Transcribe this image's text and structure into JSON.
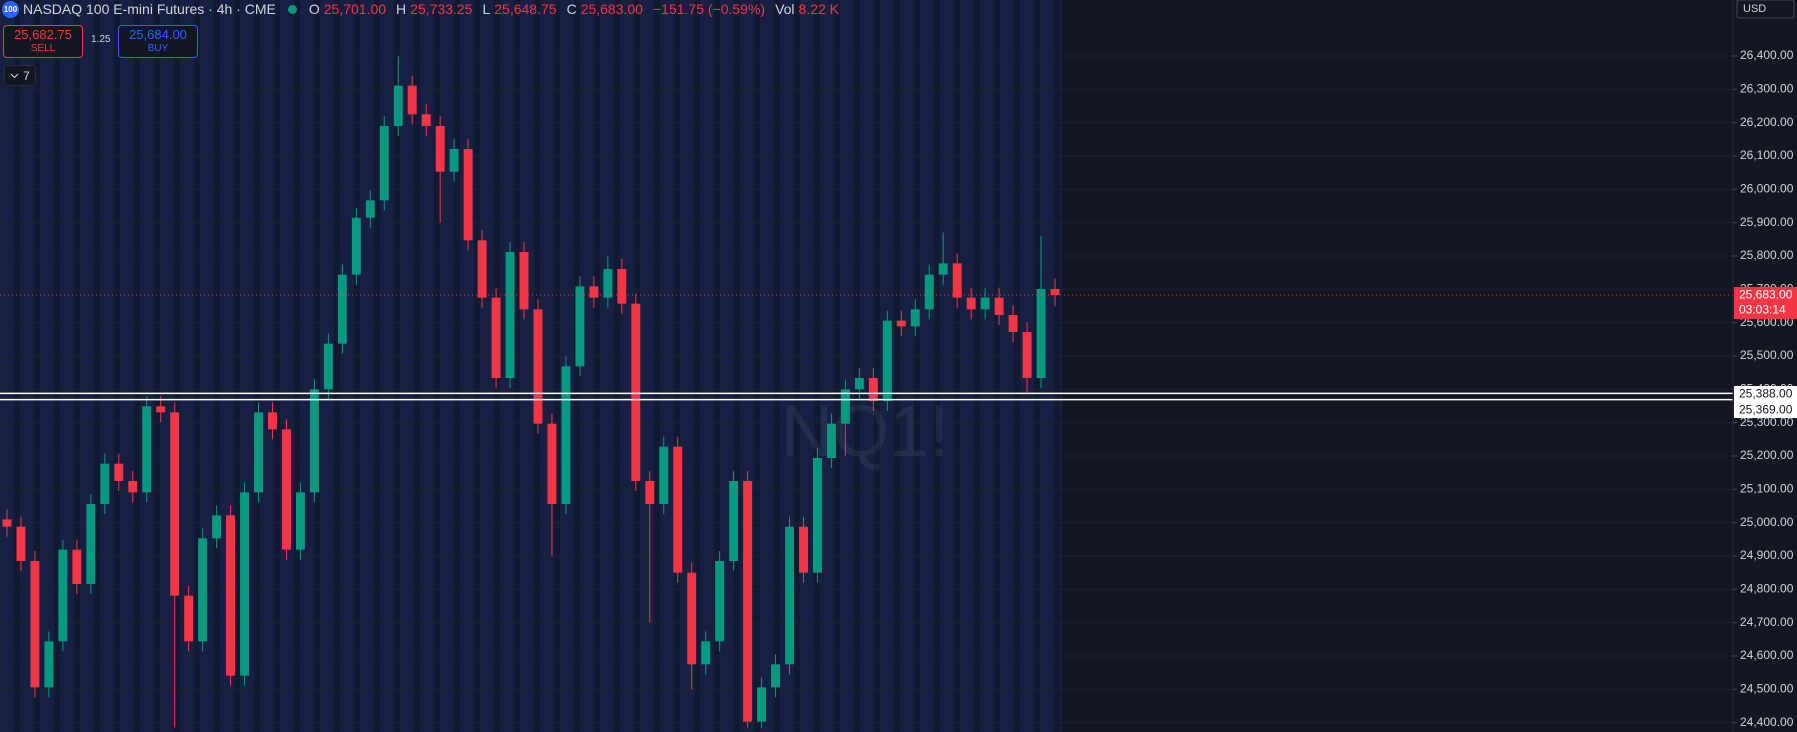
{
  "header": {
    "symbol_icon": "100",
    "title": "NASDAQ 100 E-mini Futures · 4h · CME",
    "ohlc": [
      {
        "key": "O",
        "value": "25,701.00"
      },
      {
        "key": "H",
        "value": "25,733.25"
      },
      {
        "key": "L",
        "value": "25,648.75"
      },
      {
        "key": "C",
        "value": "25,683.00"
      }
    ],
    "change": "−151.75 (−0.59%)",
    "volume_key": "Vol",
    "volume": "8.22 K"
  },
  "trade": {
    "sell_price": "25,682.75",
    "sell": "SELL",
    "spread": "1.25",
    "buy_price": "25,684.00",
    "buy": "BUY",
    "indicators_count": "7"
  },
  "chart_data": {
    "type": "candlestick",
    "watermark": "NQ1!",
    "currency": "USD",
    "up_color": "#089981",
    "down_color": "#f23645",
    "grid": true,
    "ylim": [
      24372,
      26568
    ],
    "yticks": [
      {
        "value": 24400,
        "label": "24,400.00"
      },
      {
        "value": 24500,
        "label": "24,500.00"
      },
      {
        "value": 24600,
        "label": "24,600.00"
      },
      {
        "value": 24700,
        "label": "24,700.00"
      },
      {
        "value": 24800,
        "label": "24,800.00"
      },
      {
        "value": 24900,
        "label": "24,900.00"
      },
      {
        "value": 25000,
        "label": "25,000.00"
      },
      {
        "value": 25100,
        "label": "25,100.00"
      },
      {
        "value": 25200,
        "label": "25,200.00"
      },
      {
        "value": 25300,
        "label": "25,300.00"
      },
      {
        "value": 25400,
        "label": "25,400.00"
      },
      {
        "value": 25500,
        "label": "25,500.00"
      },
      {
        "value": 25600,
        "label": "25,600.00"
      },
      {
        "value": 25700,
        "label": "25,700.00"
      },
      {
        "value": 25800,
        "label": "25,800.00"
      },
      {
        "value": 25900,
        "label": "25,900.00"
      },
      {
        "value": 26000,
        "label": "26,000.00"
      },
      {
        "value": 26100,
        "label": "26,100.00"
      },
      {
        "value": 26200,
        "label": "26,200.00"
      },
      {
        "value": 26300,
        "label": "26,300.00"
      },
      {
        "value": 26400,
        "label": "26,400.00"
      }
    ],
    "open": [
      25010,
      24988,
      24885,
      24506,
      24644,
      24919,
      24816,
      25056,
      25177,
      25125,
      25091,
      25349,
      25331,
      24781,
      24644,
      24953,
      25022,
      24541,
      25091,
      25331,
      25280,
      24919,
      25091,
      25400,
      25537,
      25744,
      25915,
      25967,
      26190,
      26311,
      26225,
      26190,
      26053,
      26121,
      25847,
      25675,
      25434,
      25812,
      25640,
      25297,
      25056,
      25469,
      25709,
      25675,
      25761,
      25657,
      25125,
      25056,
      25228,
      24850,
      24575,
      24644,
      24885,
      25125,
      24403,
      24506,
      24575,
      24988,
      24850,
      25194,
      25297,
      25400,
      25434,
      25365,
      25606,
      25589,
      25640,
      25744,
      25778,
      25675,
      25640,
      25675,
      25623,
      25572,
      25434,
      25701
    ],
    "high": [
      25040,
      25018,
      24915,
      24674,
      24949,
      24949,
      25086,
      25207,
      25207,
      25155,
      25379,
      25379,
      25361,
      24811,
      24983,
      25052,
      25052,
      25121,
      25361,
      25361,
      25310,
      25121,
      25430,
      25567,
      25774,
      25945,
      25997,
      26220,
      26400,
      26341,
      26255,
      26220,
      26151,
      26151,
      25877,
      25705,
      25842,
      25842,
      25670,
      25327,
      25499,
      25739,
      25739,
      25800,
      25791,
      25687,
      25155,
      25258,
      25258,
      24880,
      24674,
      24915,
      25155,
      25155,
      24536,
      24605,
      25018,
      25018,
      25224,
      25327,
      25430,
      25464,
      25464,
      25636,
      25636,
      25670,
      25774,
      25870,
      25808,
      25705,
      25705,
      25705,
      25653,
      25602,
      25860,
      25733
    ],
    "low": [
      24958,
      24855,
      24476,
      24476,
      24614,
      24786,
      24786,
      25026,
      25095,
      25061,
      25061,
      25301,
      24386,
      24614,
      24614,
      24923,
      24511,
      24511,
      25061,
      25250,
      24889,
      24889,
      25061,
      25370,
      25507,
      25714,
      25885,
      25937,
      26160,
      26195,
      26160,
      25900,
      26023,
      25817,
      25645,
      25404,
      25404,
      25610,
      25267,
      24900,
      25026,
      25439,
      25645,
      25645,
      25627,
      25095,
      24700,
      25026,
      24820,
      24500,
      24545,
      24614,
      24855,
      24385,
      24385,
      24476,
      24545,
      24820,
      24820,
      25164,
      25200,
      25370,
      25335,
      25335,
      25559,
      25559,
      25610,
      25714,
      25645,
      25610,
      25610,
      25593,
      25542,
      25390,
      25404,
      25648.75
    ],
    "close": [
      24988,
      24885,
      24506,
      24644,
      24919,
      24816,
      25056,
      25177,
      25125,
      25091,
      25349,
      25331,
      24781,
      24644,
      24953,
      25022,
      24541,
      25091,
      25331,
      25280,
      24919,
      25091,
      25400,
      25537,
      25744,
      25915,
      25967,
      26190,
      26311,
      26225,
      26190,
      26053,
      26121,
      25847,
      25675,
      25434,
      25812,
      25640,
      25297,
      25056,
      25469,
      25709,
      25675,
      25761,
      25657,
      25125,
      25056,
      25228,
      24850,
      24575,
      24644,
      24885,
      25125,
      24403,
      24506,
      24575,
      24988,
      24850,
      25194,
      25297,
      25400,
      25434,
      25365,
      25606,
      25589,
      25640,
      25744,
      25778,
      25675,
      25640,
      25675,
      25623,
      25572,
      25434,
      25701,
      25683
    ],
    "last_price": {
      "value": 25683,
      "label": "25,683.00",
      "countdown": "03:03:14",
      "color": "#f23645"
    },
    "levels": [
      {
        "value": 25388,
        "label": "25,388.00"
      },
      {
        "value": 25369,
        "label": "25,369.00"
      }
    ]
  }
}
